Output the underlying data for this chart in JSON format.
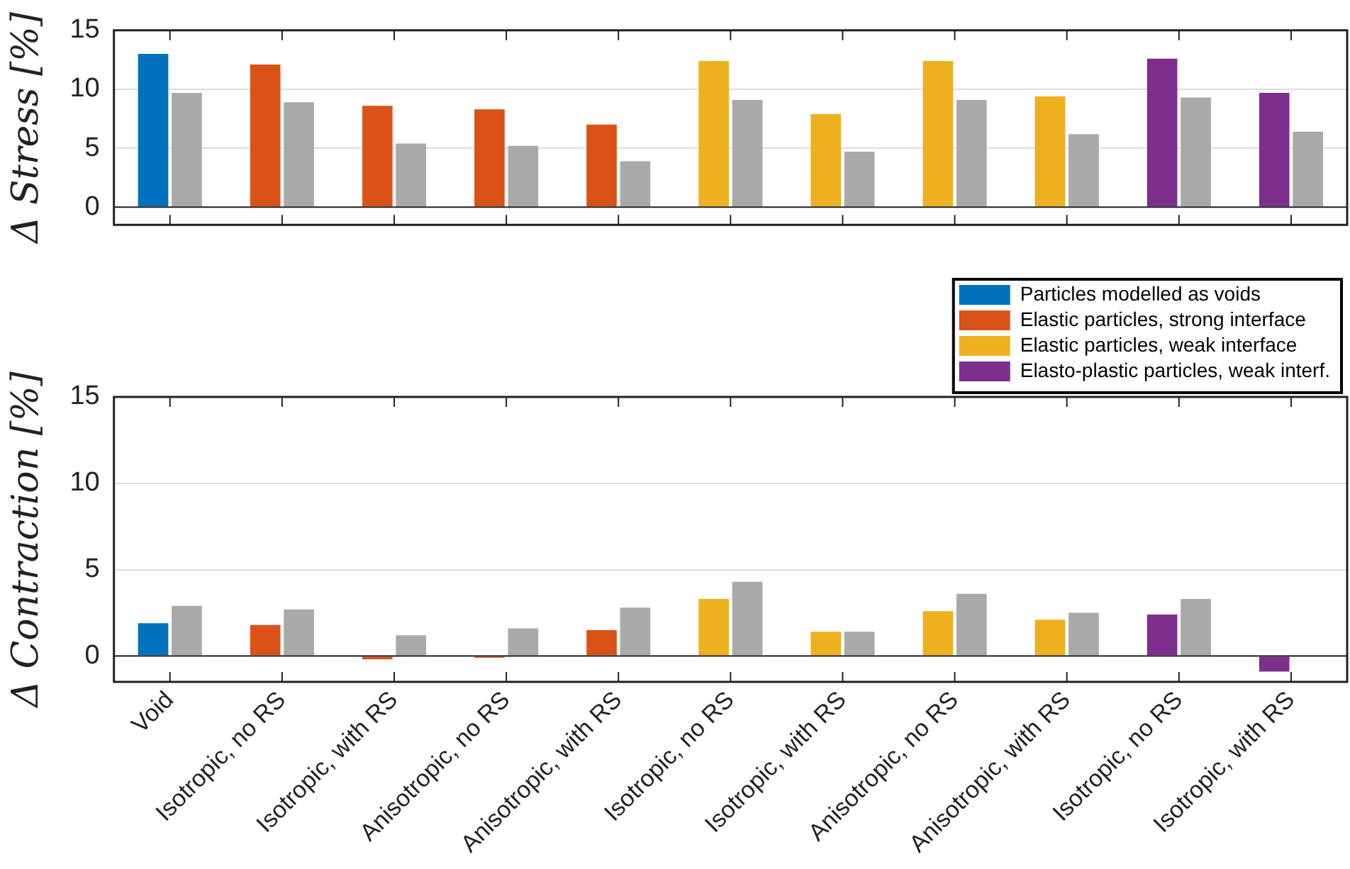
{
  "chart_data": [
    {
      "type": "bar",
      "ylabel": "Δ Stress [%]",
      "categories": [
        null,
        null,
        null,
        null,
        null,
        null,
        null,
        null,
        null,
        null,
        null
      ],
      "series": [
        {
          "color": "#0072bd",
          "values": [
            13.0,
            null,
            null,
            null,
            null,
            null,
            null,
            null,
            null,
            null,
            null
          ]
        },
        {
          "color": "#d95319",
          "values": [
            null,
            12.1,
            8.6,
            8.3,
            7.0,
            null,
            null,
            null,
            null,
            null,
            null
          ]
        },
        {
          "color": "#edb120",
          "values": [
            null,
            null,
            null,
            null,
            null,
            12.4,
            7.9,
            12.4,
            9.4,
            null,
            null
          ]
        },
        {
          "color": "#7e2f8e",
          "values": [
            null,
            null,
            null,
            null,
            null,
            null,
            null,
            null,
            null,
            12.6,
            9.7
          ]
        },
        {
          "color": "#a9a9a9",
          "values": [
            9.7,
            8.9,
            5.4,
            5.2,
            3.9,
            9.1,
            4.7,
            9.1,
            6.2,
            9.3,
            6.4
          ]
        }
      ],
      "ylim": [
        -1.5,
        15
      ],
      "yticks": [
        0,
        5,
        10,
        15
      ],
      "grid": "y",
      "legend": false,
      "tick_labels": "y"
    },
    {
      "type": "bar",
      "ylabel": "Δ Contraction [%]",
      "categories": [
        "Void",
        "Isotropic, no RS",
        "Isotropic, with RS",
        "Anisotropic, no RS",
        "Anisotropic, with RS",
        "Isotropic, no RS",
        "Isotropic, with RS",
        "Anisotropic, no RS",
        "Anisotropic, with RS",
        "Isotropic, no RS",
        "Isotropic, with RS"
      ],
      "series": [
        {
          "name": "Particles modelled as voids",
          "color": "#0072bd",
          "values": [
            1.9,
            null,
            null,
            null,
            null,
            null,
            null,
            null,
            null,
            null,
            null
          ]
        },
        {
          "name": "Elastic particles, strong interface",
          "color": "#d95319",
          "values": [
            null,
            1.8,
            -0.2,
            -0.1,
            1.5,
            null,
            null,
            null,
            null,
            null,
            null
          ]
        },
        {
          "name": "Elastic particles, weak interface",
          "color": "#edb120",
          "values": [
            null,
            null,
            null,
            null,
            null,
            3.3,
            1.4,
            2.6,
            2.1,
            null,
            null
          ]
        },
        {
          "name": "Elasto-plastic particles, weak interf.",
          "color": "#7e2f8e",
          "values": [
            null,
            null,
            null,
            null,
            null,
            null,
            null,
            null,
            null,
            2.4,
            -0.9
          ]
        },
        {
          "color": "#a9a9a9",
          "values": [
            2.9,
            2.7,
            1.2,
            1.6,
            2.8,
            4.3,
            1.4,
            3.6,
            2.5,
            3.3,
            0
          ]
        }
      ],
      "ylim": [
        -1.5,
        15
      ],
      "yticks": [
        0,
        5,
        10,
        15
      ],
      "grid": "y",
      "legend": "top right"
    }
  ]
}
